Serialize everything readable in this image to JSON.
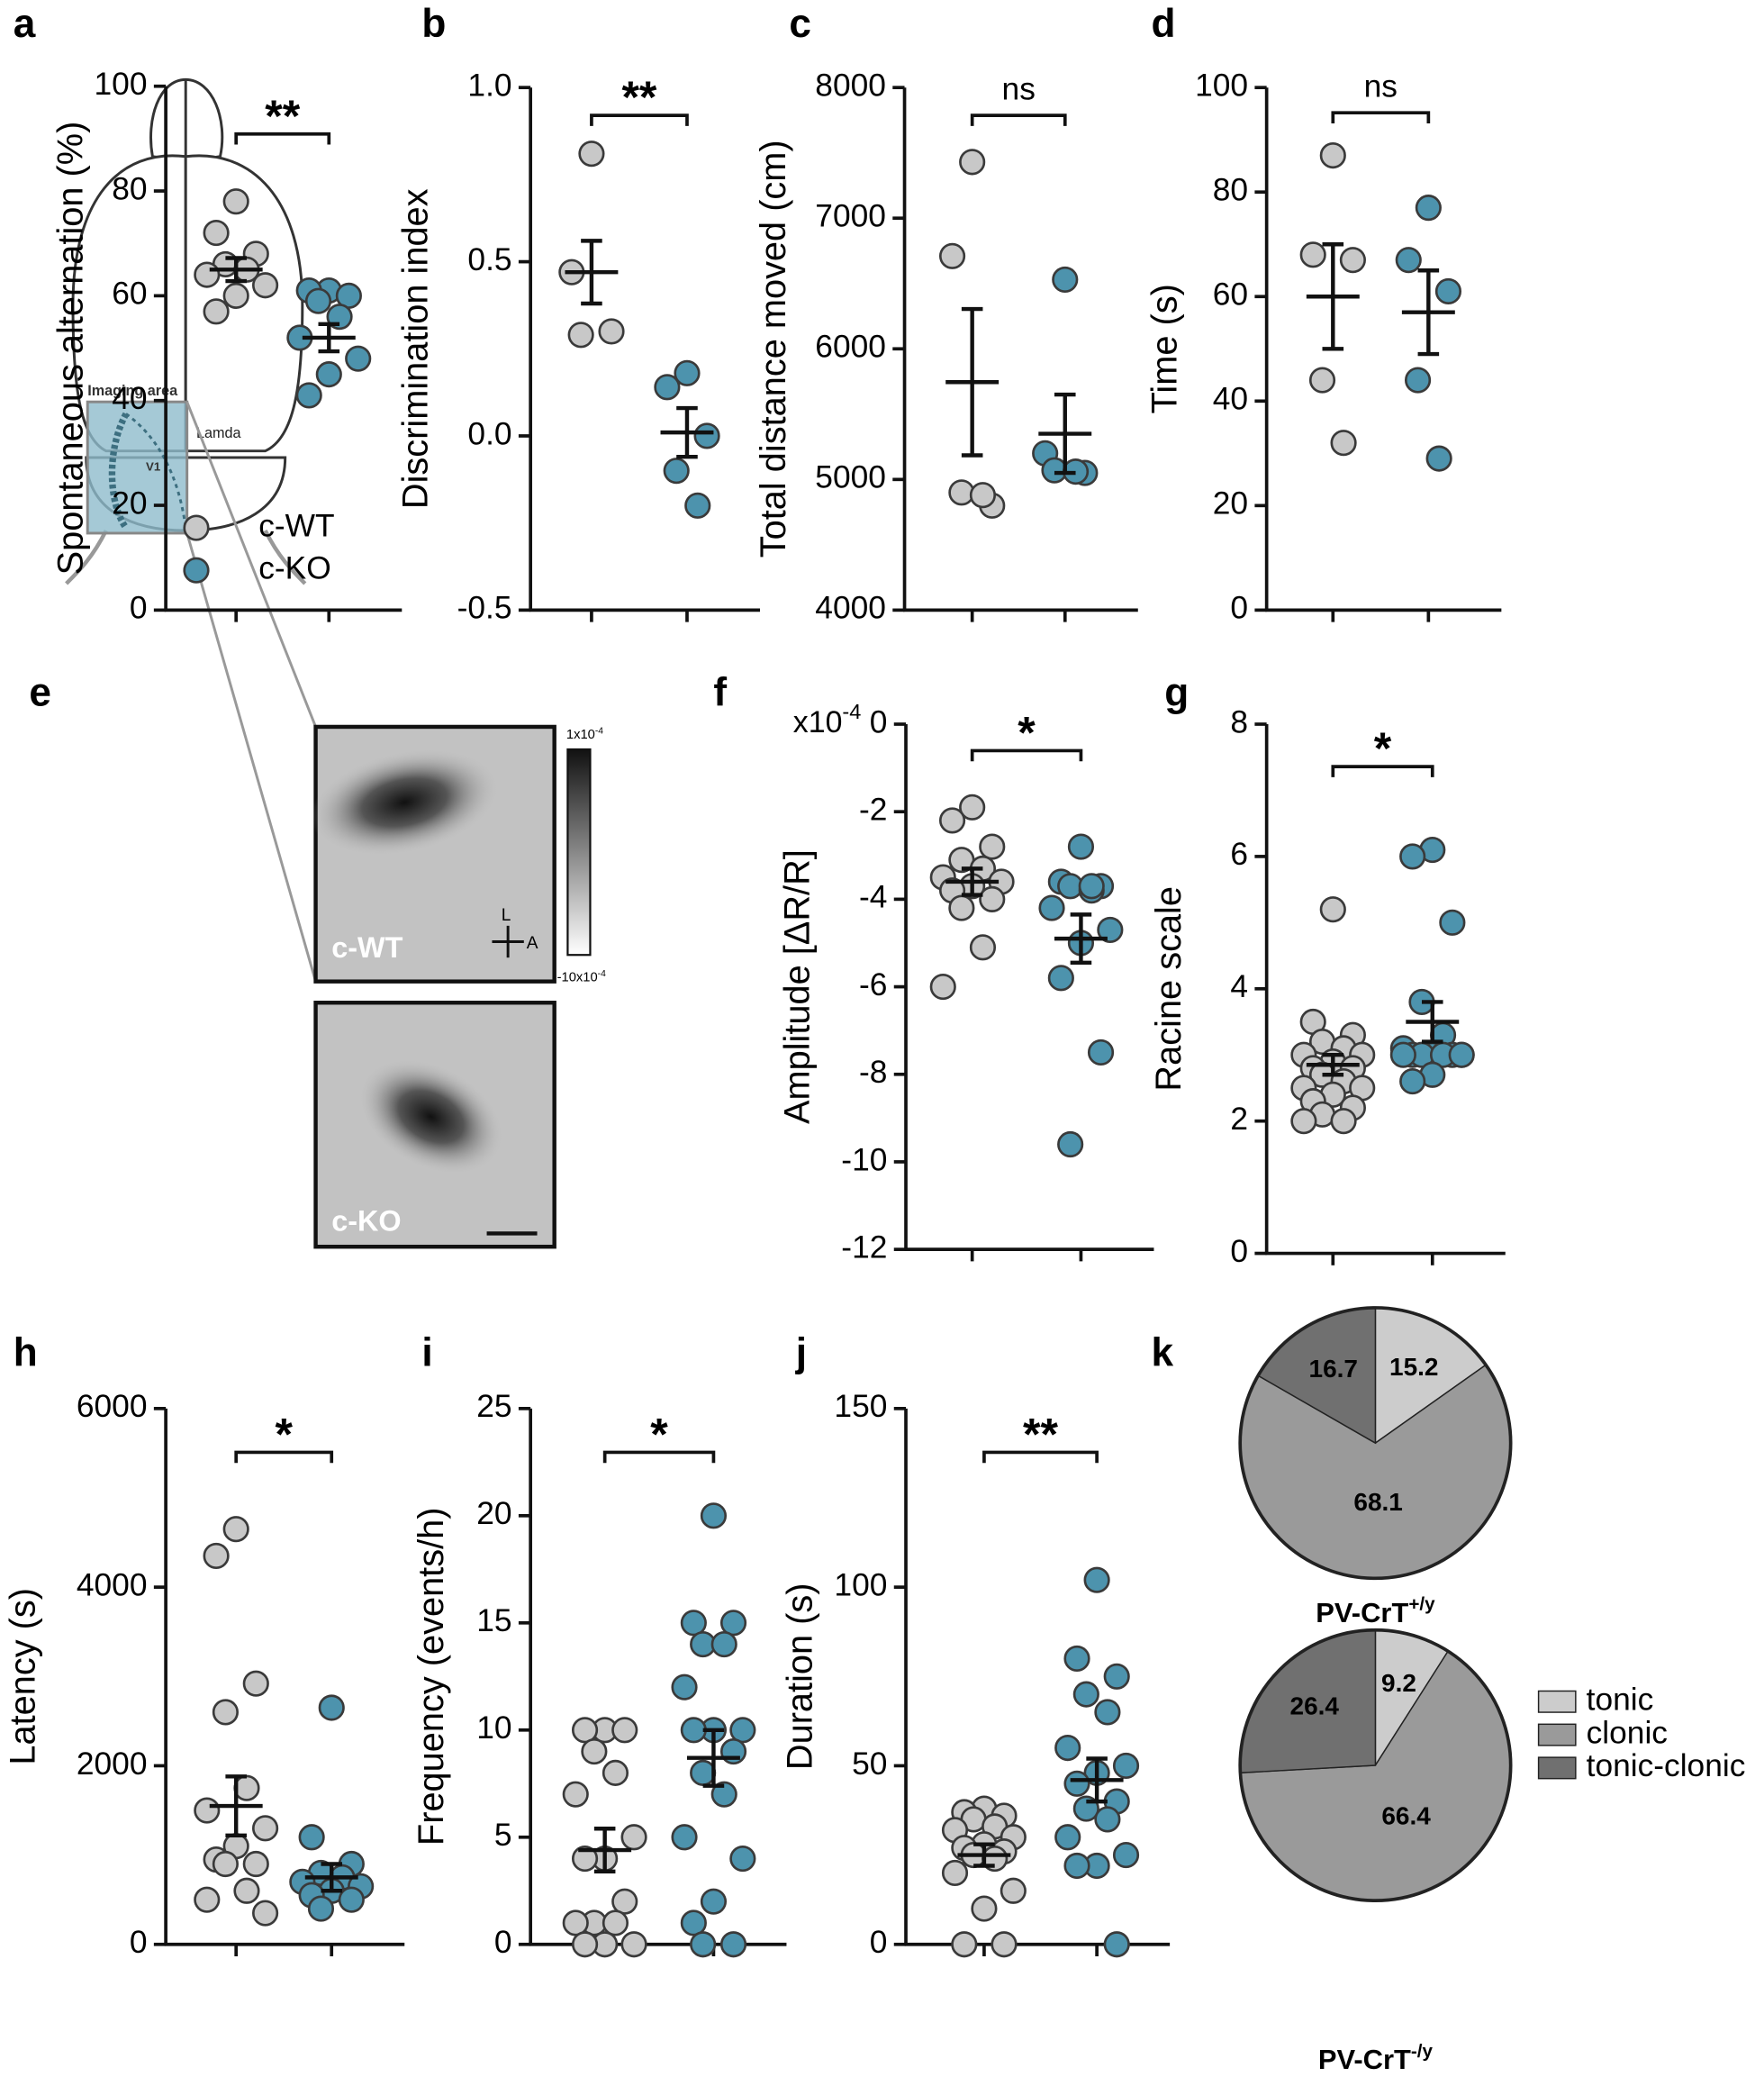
{
  "chart_data": [
    {
      "type": "dotplot",
      "panel": "a",
      "ylabel": "Spontaneous alternation (%)",
      "ylim": [
        0,
        100
      ],
      "yticks": [
        0,
        20,
        40,
        60,
        80,
        100
      ],
      "annotation": "**",
      "legend": "lower left",
      "series": [
        {
          "name": "c-WT",
          "color": "#c8c8c8",
          "values": [
            78,
            72,
            68,
            66,
            65,
            64,
            62,
            60,
            57
          ],
          "mean": 65,
          "sem": 2.2
        },
        {
          "name": "c-KO",
          "color": "#4d93ad",
          "values": [
            61,
            61,
            60,
            59,
            56,
            52,
            48,
            45,
            41
          ],
          "mean": 52,
          "sem": 2.6
        }
      ]
    },
    {
      "type": "dotplot",
      "panel": "b",
      "ylabel": "Discrimination index",
      "ylim": [
        -0.5,
        1.0
      ],
      "yticks": [
        -0.5,
        {
          "value": 0,
          "label": "0.0"
        },
        0.5,
        {
          "value": 1,
          "label": "1.0"
        }
      ],
      "annotation": "**",
      "series": [
        {
          "color": "#c8c8c8",
          "values": [
            0.81,
            0.47,
            0.3,
            0.29
          ],
          "mean": 0.47,
          "sem": 0.09
        },
        {
          "color": "#4d93ad",
          "values": [
            0.18,
            0.14,
            0.0,
            -0.1,
            -0.2
          ],
          "mean": 0.01,
          "sem": 0.07
        }
      ]
    },
    {
      "type": "dotplot",
      "panel": "c",
      "ylabel": "Total distance moved (cm)",
      "ylim": [
        4000,
        8000
      ],
      "yticks": [
        4000,
        5000,
        6000,
        7000,
        8000
      ],
      "annotation": "ns",
      "series": [
        {
          "color": "#c8c8c8",
          "values": [
            7430,
            6710,
            4800,
            4900,
            4880
          ],
          "mean": 5745,
          "sem": 560
        },
        {
          "color": "#4d93ad",
          "values": [
            6530,
            5200,
            5050,
            5070,
            5060
          ],
          "mean": 5350,
          "sem": 300
        }
      ]
    },
    {
      "type": "dotplot",
      "panel": "d",
      "ylabel": "Time (s)",
      "ylim": [
        0,
        100
      ],
      "yticks": [
        0,
        20,
        40,
        60,
        80,
        100
      ],
      "annotation": "ns",
      "series": [
        {
          "color": "#c8c8c8",
          "values": [
            87,
            68,
            67,
            44,
            32
          ],
          "mean": 60,
          "sem": 10
        },
        {
          "color": "#4d93ad",
          "values": [
            77,
            67,
            61,
            44,
            29
          ],
          "mean": 57,
          "sem": 8
        }
      ]
    },
    {
      "type": "dotplot",
      "panel": "f",
      "ylabel": "Amplitude [ΔR/R]",
      "multiplier": {
        "text": "x10",
        "sup": "-4"
      },
      "ylim": [
        -12,
        0
      ],
      "yticks": [
        -12,
        -10,
        -8,
        -6,
        -4,
        -2,
        0
      ],
      "annotation": "*",
      "series": [
        {
          "color": "#c8c8c8",
          "values": [
            -1.9,
            -2.2,
            -2.8,
            -3.1,
            -3.3,
            -3.5,
            -3.6,
            -3.7,
            -3.8,
            -4.0,
            -4.2,
            -5.1,
            -6.0
          ],
          "mean": -3.6,
          "sem": 0.3
        },
        {
          "color": "#4d93ad",
          "values": [
            -2.8,
            -3.6,
            -3.7,
            -3.7,
            -3.8,
            -4.2,
            -4.7,
            -5.0,
            -5.8,
            -7.5,
            -9.6,
            -3.7
          ],
          "mean": -4.9,
          "sem": 0.55
        }
      ]
    },
    {
      "type": "dotplot",
      "panel": "g",
      "ylabel": "Racine scale",
      "ylim": [
        0,
        8
      ],
      "yticks": [
        0,
        2,
        4,
        6,
        8
      ],
      "annotation": "*",
      "series": [
        {
          "color": "#c8c8c8",
          "values": [
            5.2,
            3.5,
            3.3,
            3.2,
            3.1,
            3.0,
            3.0,
            2.9,
            2.8,
            2.8,
            2.7,
            2.6,
            2.5,
            2.5,
            2.4,
            2.3,
            2.2,
            2.1,
            2.0,
            2.0
          ],
          "mean": 2.85,
          "sem": 0.15
        },
        {
          "color": "#4d93ad",
          "values": [
            6.1,
            6.0,
            5.0,
            3.8,
            3.3,
            3.1,
            3.0,
            3.0,
            3.0,
            3.0,
            3.0,
            3.0,
            3.0,
            3.0,
            2.7,
            2.6
          ],
          "mean": 3.5,
          "sem": 0.3
        }
      ]
    },
    {
      "type": "dotplot",
      "panel": "h",
      "ylabel": "Latency (s)",
      "ylim": [
        0,
        6000
      ],
      "yticks": [
        0,
        2000,
        4000,
        6000
      ],
      "annotation": "*",
      "series": [
        {
          "color": "#c8c8c8",
          "values": [
            4650,
            4350,
            2920,
            2600,
            1750,
            1500,
            1300,
            1100,
            950,
            900,
            900,
            600,
            500,
            350
          ],
          "mean": 1550,
          "sem": 330
        },
        {
          "color": "#4d93ad",
          "values": [
            2650,
            1200,
            900,
            800,
            750,
            700,
            650,
            600,
            550,
            500,
            400
          ],
          "mean": 750,
          "sem": 150
        }
      ]
    },
    {
      "type": "dotplot",
      "panel": "i",
      "ylabel": "Frequency (events/h)",
      "ylim": [
        0,
        25
      ],
      "yticks": [
        0,
        5,
        10,
        15,
        20,
        25
      ],
      "annotation": "*",
      "series": [
        {
          "color": "#c8c8c8",
          "values": [
            10,
            10,
            10,
            9,
            8,
            7,
            5,
            4,
            4,
            2,
            1,
            1,
            1,
            0,
            0,
            0
          ],
          "mean": 4.4,
          "sem": 1
        },
        {
          "color": "#4d93ad",
          "values": [
            20,
            15,
            15,
            14,
            14,
            12,
            10,
            10,
            10,
            9,
            8,
            7,
            5,
            4,
            2,
            1,
            0,
            0
          ],
          "mean": 8.7,
          "sem": 1.3
        }
      ]
    },
    {
      "type": "dotplot",
      "panel": "j",
      "ylabel": "Duration (s)",
      "ylim": [
        0,
        150
      ],
      "yticks": [
        0,
        50,
        100,
        150
      ],
      "annotation": "**",
      "series": [
        {
          "color": "#c8c8c8",
          "values": [
            38,
            37,
            36,
            35,
            33,
            32,
            30,
            28,
            27,
            26,
            25,
            24,
            20,
            15,
            10,
            0,
            0
          ],
          "mean": 25,
          "sem": 3
        },
        {
          "color": "#4d93ad",
          "values": [
            102,
            80,
            75,
            70,
            65,
            55,
            50,
            48,
            45,
            40,
            38,
            35,
            30,
            25,
            22,
            22,
            0
          ],
          "mean": 46,
          "sem": 6
        }
      ]
    },
    {
      "type": "pie",
      "panel": "k",
      "categories": [
        "tonic",
        "clonic",
        "tonic-clonic"
      ],
      "colors": [
        "#cccccc",
        "#9a9a9a",
        "#707070"
      ],
      "pies": [
        {
          "title": {
            "text": "PV-CrT",
            "sup": "+/y"
          },
          "values": [
            15.2,
            68.1,
            16.7
          ]
        },
        {
          "title": {
            "text": "PV-CrT",
            "sup": "-/y"
          },
          "values": [
            9.2,
            66.4,
            26.4
          ]
        }
      ]
    }
  ],
  "image_panel": {
    "panel": "e",
    "area": "Imaging area",
    "region": "V1",
    "landmark": "Lamda",
    "wt": "c-WT",
    "ko": "c-KO",
    "lateral": "L",
    "anterior": "A",
    "colorbar_max": {
      "text": "1x10",
      "sup": "-4"
    },
    "colorbar_min": {
      "text": "-10x10",
      "sup": "-4"
    }
  }
}
